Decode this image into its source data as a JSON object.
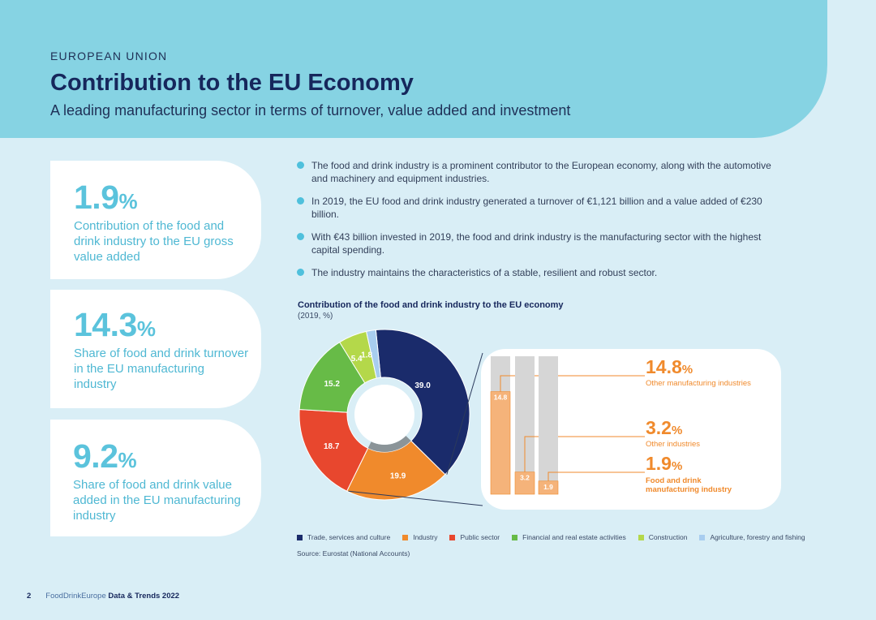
{
  "header": {
    "region": "EUROPEAN UNION",
    "title": "Contribution to the EU Economy",
    "subtitle": "A leading manufacturing sector in terms of turnover, value added and investment"
  },
  "cards": [
    {
      "value": "1.9",
      "unit": "%",
      "description": "Contribution of the food and drink industry to the EU gross value added"
    },
    {
      "value": "14.3",
      "unit": "%",
      "description": "Share of food and drink turnover in the EU manufacturing industry"
    },
    {
      "value": "9.2",
      "unit": "%",
      "description": "Share of food and drink value added in the EU manufacturing industry"
    }
  ],
  "bullets": [
    "The food and drink industry is a prominent contributor to the European economy, along with the automotive and machinery and equipment industries.",
    " In 2019, the EU food and drink industry generated a turnover of €1,121 billion and a value added of €230 billion.",
    "With €43 billion invested in 2019, the food and drink industry is the manufacturing sector with the highest capital spending.",
    "The industry maintains the characteristics of a stable, resilient and robust sector."
  ],
  "chart": {
    "title": "Contribution of the food and drink industry to the EU economy",
    "subtitle": "(2019, %)",
    "source": "Source: Eurostat (National Accounts)"
  },
  "chart_data": {
    "type": "pie",
    "title": "Contribution of the food and drink industry to the EU economy",
    "subtitle": "(2019, %)",
    "slices": [
      {
        "label": "Trade, services and culture",
        "value": 39.0,
        "display": "39.0",
        "color": "#1a2b6b"
      },
      {
        "label": "Industry",
        "value": 19.9,
        "display": "19.9",
        "color": "#f08a2c"
      },
      {
        "label": "Public sector",
        "value": 18.7,
        "display": "18.7",
        "color": "#e8472e"
      },
      {
        "label": "Financial and real estate activities",
        "value": 15.2,
        "display": "15.2",
        "color": "#67bb47"
      },
      {
        "label": "Construction",
        "value": 5.4,
        "display": "5.4",
        "color": "#b4d84a"
      },
      {
        "label": "Agriculture, forestry and fishing",
        "value": 1.8,
        "display": "1.8",
        "color": "#a8cdef"
      }
    ],
    "breakdown": {
      "of": "Industry",
      "bars": [
        {
          "value": 14.8,
          "display": "14.8",
          "pct": "14.8",
          "unit": "%",
          "label": "Other manufacturing industries"
        },
        {
          "value": 3.2,
          "display": "3.2",
          "pct": "3.2",
          "unit": "%",
          "label": "Other industries"
        },
        {
          "value": 1.9,
          "display": "1.9",
          "pct": "1.9",
          "unit": "%",
          "label": "Food and drink manufacturing industry"
        }
      ],
      "scale_max": 19.9
    }
  },
  "colors": {
    "header": "#86d3e3",
    "accent": "#5bc3dc",
    "navy": "#16275c",
    "orange_label": "#f08a2c",
    "bar_fill": "#f5b37a",
    "bar_track": "#d6d6d6"
  },
  "footer": {
    "page": "2",
    "publisher": "FoodDrinkEurope",
    "publication": "Data & Trends 2022"
  }
}
